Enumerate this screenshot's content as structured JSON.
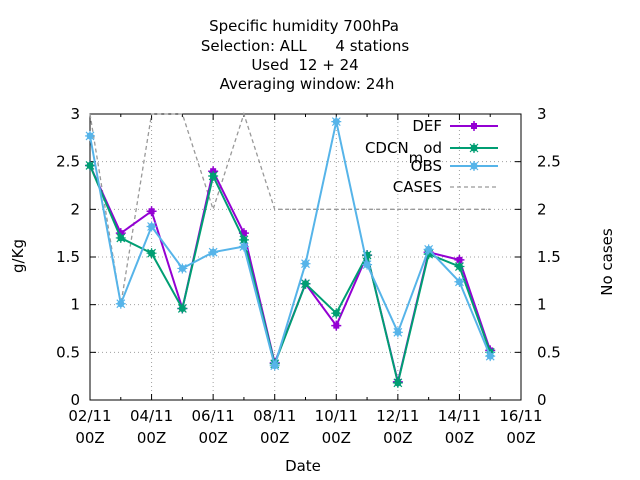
{
  "chart_data": {
    "type": "line",
    "title_lines": [
      "Specific humidity 700hPa",
      "Selection: ALL      4 stations",
      "Used  12 + 24",
      "Averaging window: 24h"
    ],
    "xlabel": "Date",
    "ylabel": "g/Kg",
    "y2label": "No cases",
    "x_range": [
      0,
      14
    ],
    "ylim": [
      0,
      3
    ],
    "y2lim": [
      0,
      3
    ],
    "y_ticks": [
      "0",
      "0.5",
      "1",
      "1.5",
      "2",
      "2.5",
      "3"
    ],
    "x_ticks": [
      {
        "pos": 0,
        "line1": "02/11",
        "line2": "00Z"
      },
      {
        "pos": 2,
        "line1": "04/11",
        "line2": "00Z"
      },
      {
        "pos": 4,
        "line1": "06/11",
        "line2": "00Z"
      },
      {
        "pos": 6,
        "line1": "08/11",
        "line2": "00Z"
      },
      {
        "pos": 8,
        "line1": "10/11",
        "line2": "00Z"
      },
      {
        "pos": 10,
        "line1": "12/11",
        "line2": "00Z"
      },
      {
        "pos": 12,
        "line1": "14/11",
        "line2": "00Z"
      },
      {
        "pos": 14,
        "line1": "16/11",
        "line2": "00Z"
      }
    ],
    "x": [
      0,
      1,
      2,
      3,
      4,
      5,
      6,
      7,
      8,
      9,
      10,
      11,
      12,
      13
    ],
    "grid": true,
    "legend_position": "top-right",
    "series": [
      {
        "name": "DEF",
        "color": "#9400d3",
        "marker": "plus-box",
        "values": [
          2.46,
          1.75,
          1.98,
          0.96,
          2.4,
          1.75,
          0.39,
          1.22,
          0.78,
          1.52,
          0.19,
          1.55,
          1.47,
          0.52
        ]
      },
      {
        "name": "CDCN_mod",
        "legend_main": "CDCN",
        "legend_sub": "m",
        "legend_rest": "od",
        "color": "#009e73",
        "marker": "star",
        "values": [
          2.46,
          1.7,
          1.54,
          0.96,
          2.35,
          1.68,
          0.38,
          1.22,
          0.91,
          1.52,
          0.18,
          1.53,
          1.4,
          0.5
        ]
      },
      {
        "name": "OBS",
        "color": "#56b4e9",
        "marker": "star",
        "values": [
          2.77,
          1.01,
          1.82,
          1.38,
          1.55,
          1.61,
          0.36,
          1.43,
          2.92,
          1.42,
          0.71,
          1.58,
          1.24,
          0.46
        ]
      },
      {
        "name": "CASES",
        "color": "#999999",
        "dashed": true,
        "marker": "none",
        "x": [
          0,
          1,
          2,
          3,
          4,
          5,
          6,
          7,
          8,
          9,
          10,
          11,
          12,
          13
        ],
        "values": [
          3,
          1,
          3,
          3,
          2,
          3,
          2,
          2,
          2,
          2,
          2,
          2,
          2,
          2
        ]
      }
    ]
  }
}
